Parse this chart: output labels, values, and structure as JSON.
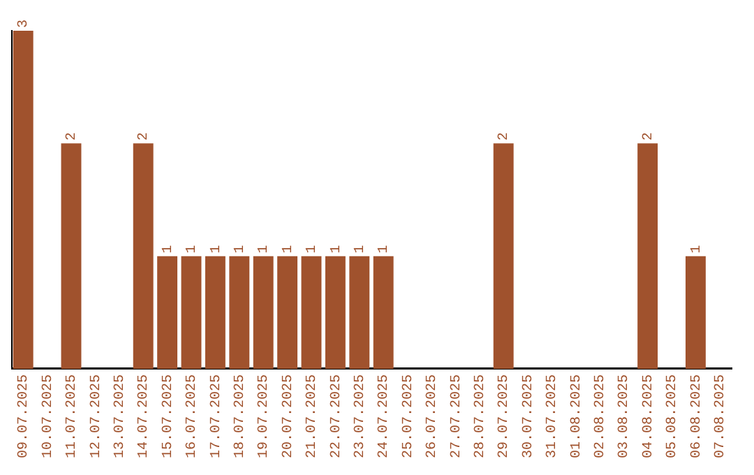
{
  "chart_data": {
    "type": "bar",
    "categories": [
      "09.07.2025",
      "10.07.2025",
      "11.07.2025",
      "12.07.2025",
      "13.07.2025",
      "14.07.2025",
      "15.07.2025",
      "16.07.2025",
      "17.07.2025",
      "18.07.2025",
      "19.07.2025",
      "20.07.2025",
      "21.07.2025",
      "22.07.2025",
      "23.07.2025",
      "24.07.2025",
      "25.07.2025",
      "26.07.2025",
      "27.07.2025",
      "28.07.2025",
      "29.07.2025",
      "30.07.2025",
      "31.07.2025",
      "01.08.2025",
      "02.08.2025",
      "03.08.2025",
      "04.08.2025",
      "05.08.2025",
      "06.08.2025",
      "07.08.2025"
    ],
    "values": [
      3,
      0,
      2,
      0,
      0,
      2,
      1,
      1,
      1,
      1,
      1,
      1,
      1,
      1,
      1,
      1,
      0,
      0,
      0,
      0,
      2,
      0,
      0,
      0,
      0,
      0,
      2,
      0,
      1,
      0
    ],
    "value_labels": [
      "3",
      null,
      "2",
      null,
      null,
      "2",
      "1",
      "1",
      "1",
      "1",
      "1",
      "1",
      "1",
      "1",
      "1",
      "1",
      null,
      null,
      null,
      null,
      "2",
      null,
      null,
      null,
      null,
      null,
      "2",
      null,
      "1",
      null
    ],
    "color": "#a0522d",
    "ylim": [
      0,
      3
    ],
    "grid": false,
    "legend": false
  }
}
